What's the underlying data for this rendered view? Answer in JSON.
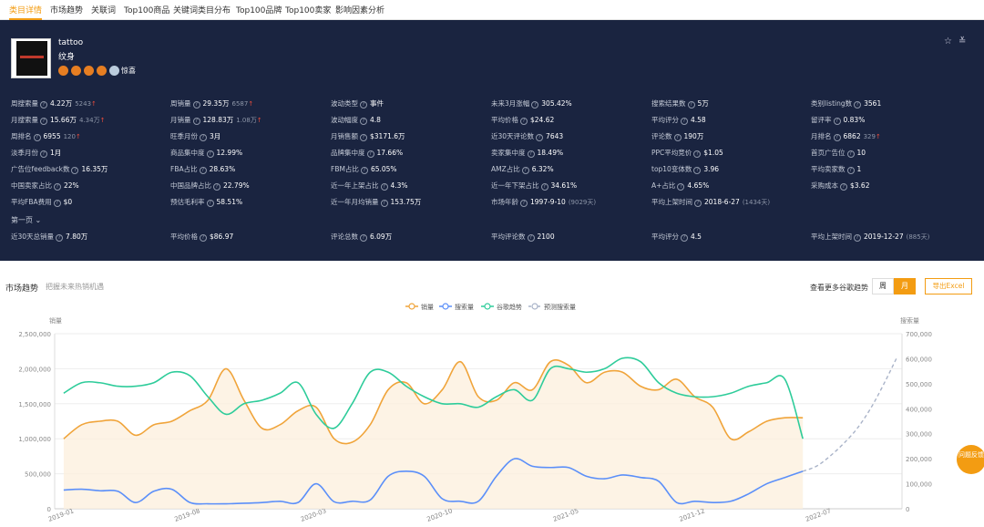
{
  "tabs": [
    "类目详情",
    "市场趋势",
    "关联词",
    "Top100商品",
    "关键词类目分布",
    "Top100品牌",
    "Top100卖家",
    "影响因素分析"
  ],
  "product": {
    "title": "tattoo",
    "subtitle": "纹身",
    "emoji_label": "惊喜"
  },
  "stats": [
    [
      {
        "label": "周搜索量",
        "value": "4.22万",
        "delta": "5243",
        "up": true
      },
      {
        "label": "周销量",
        "value": "29.35万",
        "delta": "6587",
        "up": true
      },
      {
        "label": "波动类型",
        "value": "事件"
      },
      {
        "label": "未来3月涨幅",
        "value": "305.42%"
      },
      {
        "label": "搜索结果数",
        "value": "5万"
      },
      {
        "label": "类别listing数",
        "value": "3561"
      }
    ],
    [
      {
        "label": "月搜索量",
        "value": "15.66万",
        "delta": "4.34万",
        "up": true
      },
      {
        "label": "月销量",
        "value": "128.83万",
        "delta": "1.08万",
        "up": true
      },
      {
        "label": "波动幅度",
        "value": "4.8"
      },
      {
        "label": "平均价格",
        "value": "$24.62"
      },
      {
        "label": "平均评分",
        "value": "4.58"
      },
      {
        "label": "留评率",
        "value": "0.83%"
      }
    ],
    [
      {
        "label": "周排名",
        "value": "6955",
        "delta": "120",
        "up": true
      },
      {
        "label": "旺季月份",
        "value": "3月"
      },
      {
        "label": "月销售额",
        "value": "$3171.6万"
      },
      {
        "label": "近30天评论数",
        "value": "7643"
      },
      {
        "label": "评论数",
        "value": "190万"
      },
      {
        "label": "月排名",
        "value": "6862",
        "delta": "329",
        "up": true
      }
    ],
    [
      {
        "label": "淡季月份",
        "value": "1月"
      },
      {
        "label": "商品集中度",
        "value": "12.99%"
      },
      {
        "label": "品牌集中度",
        "value": "17.66%"
      },
      {
        "label": "卖家集中度",
        "value": "18.49%"
      },
      {
        "label": "PPC平均竞价",
        "value": "$1.05"
      },
      {
        "label": "首页广告位",
        "value": "10"
      }
    ],
    [
      {
        "label": "广告位feedback数",
        "value": "16.35万"
      },
      {
        "label": "FBA占比",
        "value": "28.63%"
      },
      {
        "label": "FBM占比",
        "value": "65.05%"
      },
      {
        "label": "AMZ占比",
        "value": "6.32%"
      },
      {
        "label": "top10变体数",
        "value": "3.96"
      },
      {
        "label": "平均卖家数",
        "value": "1"
      }
    ],
    [
      {
        "label": "中国卖家占比",
        "value": "22%"
      },
      {
        "label": "中国品牌占比",
        "value": "22.79%"
      },
      {
        "label": "近一年上架占比",
        "value": "4.3%"
      },
      {
        "label": "近一年下架占比",
        "value": "34.61%"
      },
      {
        "label": "A+占比",
        "value": "4.65%"
      },
      {
        "label": "采购成本",
        "value": "$3.62"
      }
    ],
    [
      {
        "label": "平均FBA费用",
        "value": "$0"
      },
      {
        "label": "预估毛利率",
        "value": "58.51%"
      },
      {
        "label": "近一年月均销量",
        "value": "153.75万"
      },
      {
        "label": "市场年龄",
        "value": "1997-9-10",
        "delta": "(9029天)"
      },
      {
        "label": "平均上架时间",
        "value": "2018-6-27",
        "delta": "(1434天)"
      }
    ]
  ],
  "first_page_label": "第一页 ⌄",
  "first_page_stats": [
    {
      "label": "近30天总销量",
      "value": "7.80万"
    },
    {
      "label": "平均价格",
      "value": "$86.97"
    },
    {
      "label": "评论总数",
      "value": "6.09万"
    },
    {
      "label": "平均评论数",
      "value": "2100"
    },
    {
      "label": "平均评分",
      "value": "4.5"
    },
    {
      "label": "平均上架时间",
      "value": "2019-12-27",
      "delta": "(885天)"
    }
  ],
  "trend": {
    "title": "市场趋势",
    "subtitle": "把握未来热销机遇",
    "more_label": "查看更多谷歌趋势",
    "week_label": "周",
    "month_label": "月",
    "export_label": "导出Excel"
  },
  "feedback_label": "问题反馈",
  "colors": {
    "sales": "#f0a43a",
    "search": "#5b8ff9",
    "google": "#2ecc9a",
    "forecast": "#a9b3c8",
    "panel": "#1a2440",
    "accent": "#f39c12"
  },
  "chart_data": {
    "type": "line",
    "legend": [
      "销量",
      "搜索量",
      "谷歌趋势",
      "预测搜索量"
    ],
    "ylabel_left": "销量",
    "ylabel_right": "搜索量",
    "left_ticks": [
      "0",
      "500,000",
      "1,000,000",
      "1,500,000",
      "2,000,000",
      "2,500,000"
    ],
    "right_ticks": [
      "0",
      "100,000",
      "200,000",
      "300,000",
      "400,000",
      "500,000",
      "600,000",
      "700,000"
    ],
    "x_ticks": [
      "2019-01",
      "2019-08",
      "2020-03",
      "2020-10",
      "2021-05",
      "2021-12",
      "2022-07"
    ],
    "ylim_left": [
      0,
      2500000
    ],
    "ylim_right": [
      0,
      700000
    ],
    "months": 42,
    "series": [
      {
        "name": "销量",
        "axis": "left",
        "values": [
          1000000,
          1200000,
          1250000,
          1250000,
          1050000,
          1200000,
          1250000,
          1400000,
          1550000,
          2000000,
          1550000,
          1150000,
          1200000,
          1400000,
          1450000,
          1000000,
          950000,
          1200000,
          1700000,
          1800000,
          1500000,
          1700000,
          2100000,
          1600000,
          1550000,
          1800000,
          1700000,
          2100000,
          2050000,
          1800000,
          1950000,
          1950000,
          1750000,
          1700000,
          1850000,
          1600000,
          1450000,
          1000000,
          1100000,
          1250000,
          1300000,
          1300000
        ]
      },
      {
        "name": "搜索量",
        "axis": "right",
        "values": [
          75000,
          78000,
          72000,
          70000,
          25000,
          70000,
          78000,
          25000,
          20000,
          20000,
          22000,
          25000,
          30000,
          25000,
          100000,
          28000,
          30000,
          35000,
          130000,
          150000,
          130000,
          40000,
          30000,
          30000,
          130000,
          200000,
          170000,
          165000,
          165000,
          130000,
          120000,
          135000,
          125000,
          110000,
          25000,
          30000,
          25000,
          30000,
          60000,
          100000,
          125000,
          150000
        ]
      },
      {
        "name": "谷歌趋势",
        "axis": "left",
        "values": [
          1650000,
          1800000,
          1800000,
          1750000,
          1750000,
          1800000,
          1950000,
          1900000,
          1600000,
          1350000,
          1500000,
          1550000,
          1650000,
          1800000,
          1350000,
          1150000,
          1500000,
          1950000,
          1950000,
          1750000,
          1600000,
          1500000,
          1500000,
          1450000,
          1600000,
          1700000,
          1550000,
          2000000,
          2000000,
          1950000,
          2000000,
          2150000,
          2100000,
          1800000,
          1650000,
          1600000,
          1600000,
          1650000,
          1750000,
          1800000,
          1850000,
          1000000
        ]
      },
      {
        "name": "预测搜索量",
        "axis": "right",
        "values": [
          150000,
          170000,
          210000,
          260000,
          320000,
          400000,
          500000,
          610000
        ]
      }
    ]
  }
}
